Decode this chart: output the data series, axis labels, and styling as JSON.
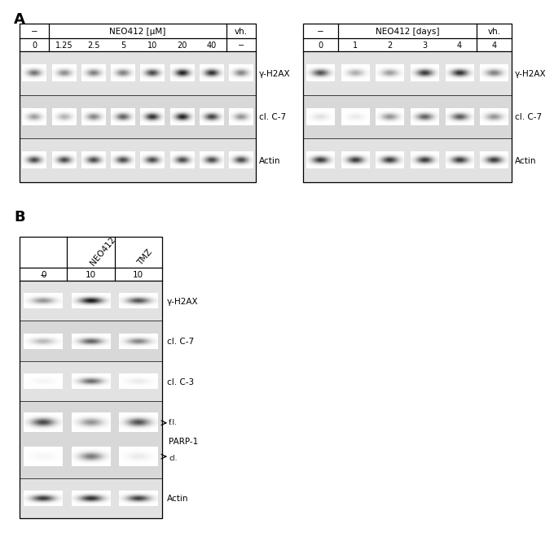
{
  "panel_A_left": {
    "title_row1": "NEO412 [μM]",
    "title_neg": "−",
    "title_vh": "vh.",
    "cols": [
      "0",
      "1.25",
      "2.5",
      "5",
      "10",
      "20",
      "40",
      "−"
    ],
    "blots": [
      {
        "label": "γ-H2AX",
        "bands": [
          0.55,
          0.45,
          0.5,
          0.5,
          0.72,
          0.88,
          0.82,
          0.48
        ]
      },
      {
        "label": "cl. C-7",
        "bands": [
          0.38,
          0.3,
          0.48,
          0.62,
          0.82,
          0.88,
          0.75,
          0.42
        ]
      },
      {
        "label": "Actin",
        "bands": [
          0.72,
          0.72,
          0.72,
          0.72,
          0.72,
          0.72,
          0.72,
          0.72
        ]
      }
    ]
  },
  "panel_A_right": {
    "title_row1": "NEO412 [days]",
    "title_neg": "−",
    "title_vh": "vh.",
    "cols": [
      "0",
      "1",
      "2",
      "3",
      "4",
      "4"
    ],
    "blots": [
      {
        "label": "γ-H2AX",
        "bands": [
          0.68,
          0.32,
          0.38,
          0.78,
          0.82,
          0.5
        ]
      },
      {
        "label": "cl. C-7",
        "bands": [
          0.12,
          0.08,
          0.42,
          0.62,
          0.65,
          0.42
        ]
      },
      {
        "label": "Actin",
        "bands": [
          0.78,
          0.78,
          0.78,
          0.78,
          0.78,
          0.78
        ]
      }
    ]
  },
  "panel_B": {
    "headers": [
      "−",
      "NEO412",
      "TMZ"
    ],
    "cols": [
      "0",
      "10",
      "10"
    ],
    "blots": [
      {
        "label": "γ-H2AX",
        "bands": [
          0.42,
          0.92,
          0.68
        ]
      },
      {
        "label": "cl. C-7",
        "bands": [
          0.28,
          0.62,
          0.48
        ]
      },
      {
        "label": "cl. C-3",
        "bands": [
          0.04,
          0.58,
          0.08
        ]
      },
      {
        "label": "PARP-1",
        "bands_fl": [
          0.72,
          0.42,
          0.68
        ],
        "bands_cl": [
          0.04,
          0.52,
          0.08
        ]
      },
      {
        "label": "Actin",
        "bands": [
          0.78,
          0.82,
          0.75
        ]
      }
    ]
  }
}
